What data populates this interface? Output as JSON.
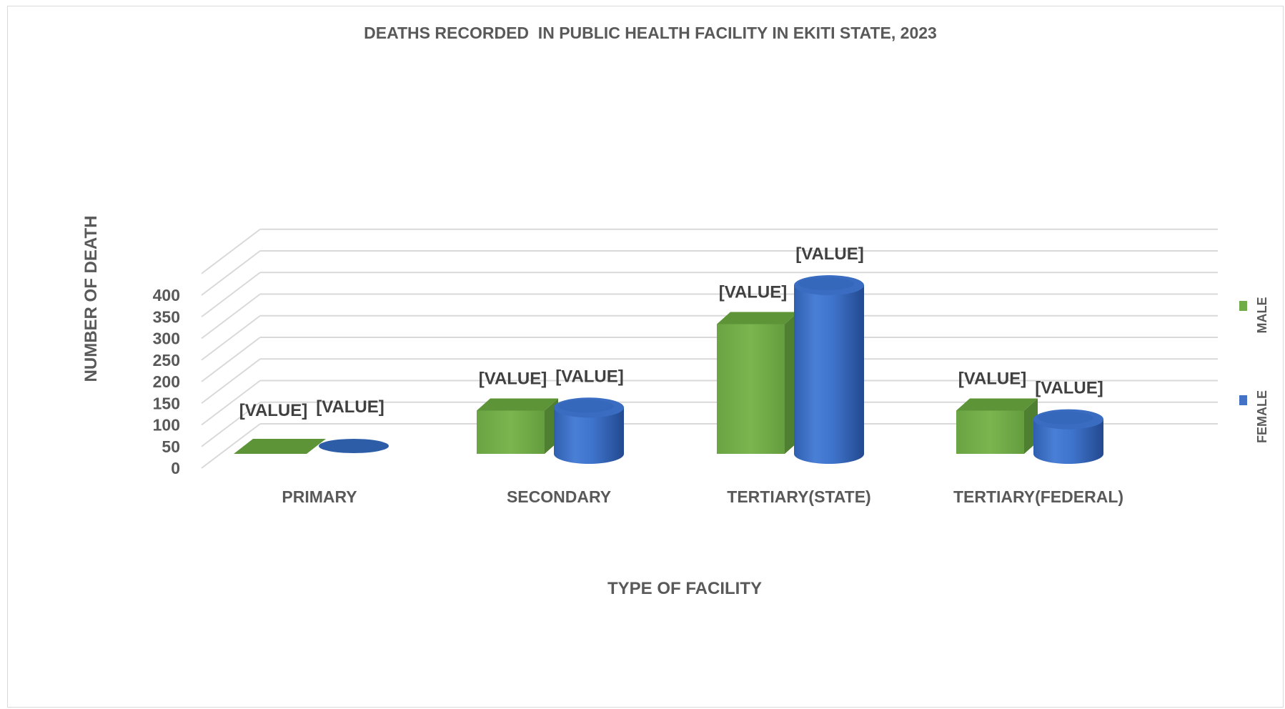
{
  "chart_data": {
    "type": "bar",
    "title": "DEATHS RECORDED  IN PUBLIC HEALTH FACILITY IN EKITI STATE, 2023",
    "xlabel": "TYPE OF FACILITY",
    "ylabel": "NUMBER OF DEATH",
    "ylim": [
      0,
      400
    ],
    "yticks": [
      0,
      50,
      100,
      150,
      200,
      250,
      300,
      350,
      400
    ],
    "grid": true,
    "three_d": true,
    "legend_position": "right",
    "categories": [
      "PRIMARY",
      "SECONDARY",
      "TERTIARY(STATE)",
      "TERTIARY(FEDERAL)"
    ],
    "data_label_text": "[VALUE]",
    "series": [
      {
        "name": "MALE",
        "shape": "box",
        "color": "#70ad47",
        "values": [
          0,
          100,
          300,
          100
        ]
      },
      {
        "name": "FEMALE",
        "shape": "cylinder",
        "color": "#4472c4",
        "values": [
          0,
          107,
          390,
          80
        ]
      }
    ]
  }
}
